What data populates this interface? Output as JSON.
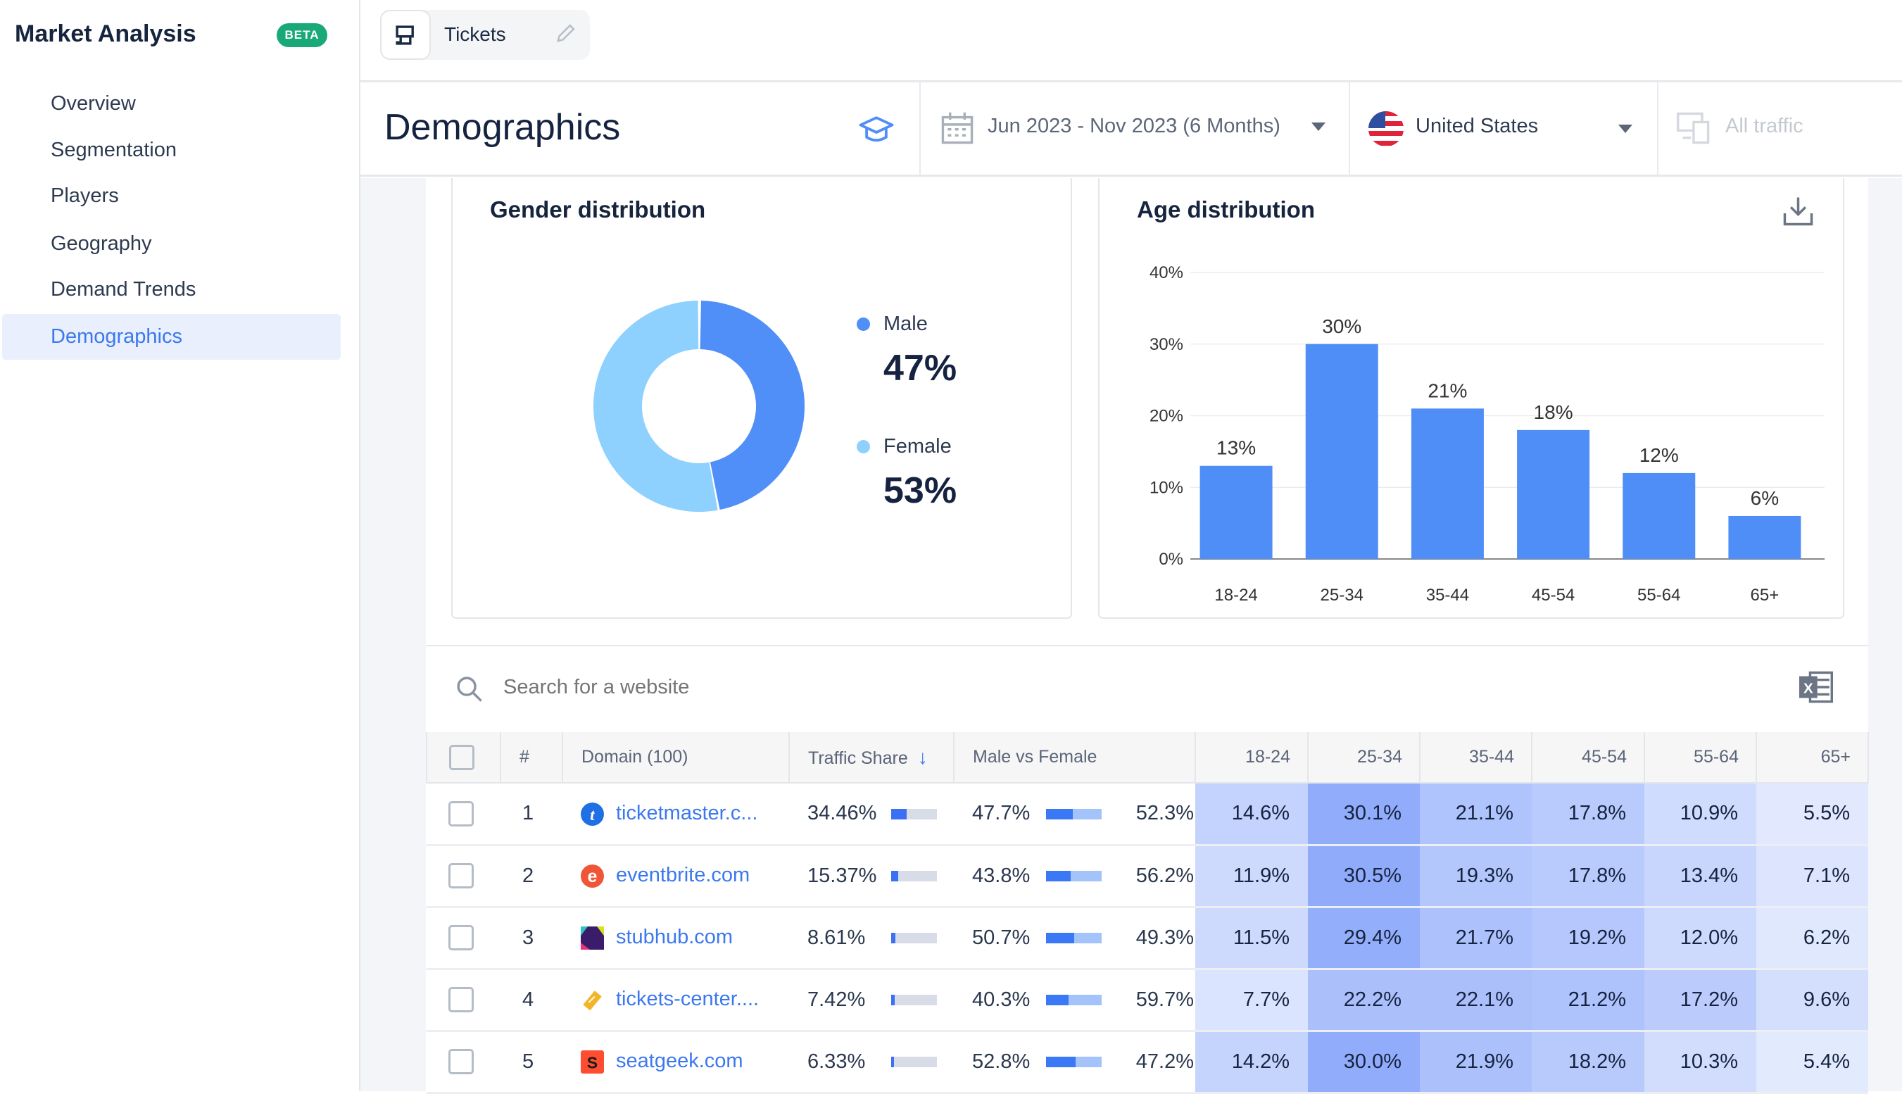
{
  "app": {
    "title": "Market Analysis",
    "badge": "BETA"
  },
  "sidebar": {
    "items": [
      {
        "label": "Overview",
        "active": false
      },
      {
        "label": "Segmentation",
        "active": false
      },
      {
        "label": "Players",
        "active": false
      },
      {
        "label": "Geography",
        "active": false
      },
      {
        "label": "Demand Trends",
        "active": false
      },
      {
        "label": "Demographics",
        "active": true
      }
    ]
  },
  "tab": {
    "label": "Tickets",
    "icon": "ticket-machine-icon",
    "edit_icon": "pencil-icon"
  },
  "header": {
    "title": "Demographics",
    "learn_icon": "graduation-cap-icon",
    "date_range": "Jun 2023 - Nov 2023 (6 Months)",
    "country": "United States",
    "traffic": "All traffic"
  },
  "gender": {
    "title": "Gender distribution",
    "male_label": "Male",
    "male_value": "47%",
    "female_label": "Female",
    "female_value": "53%",
    "colors": {
      "male": "#508ef8",
      "female": "#8ed0fe"
    }
  },
  "chart_data": {
    "type": "bar",
    "title": "Age distribution",
    "categories": [
      "18-24",
      "25-34",
      "35-44",
      "45-54",
      "55-64",
      "65+"
    ],
    "values": [
      13,
      30,
      21,
      18,
      12,
      6
    ],
    "data_labels": [
      "13%",
      "30%",
      "21%",
      "18%",
      "12%",
      "6%"
    ],
    "yticks": [
      "0%",
      "10%",
      "20%",
      "30%",
      "40%"
    ],
    "ylim": [
      0,
      40
    ],
    "grid": true,
    "color": "#4f8ef7"
  },
  "table": {
    "search_placeholder": "Search for a website",
    "columns": [
      "#",
      "Domain (100)",
      "Traffic Share",
      "Male vs Female",
      "18-24",
      "25-34",
      "35-44",
      "45-54",
      "55-64",
      "65+"
    ],
    "rows": [
      {
        "rank": "1",
        "domain": "ticketmaster.c...",
        "icon": "ticketmaster-icon",
        "share": "34.46%",
        "share_pct": 34.46,
        "male": "47.7%",
        "female": "52.3%",
        "male_pct": 47.7,
        "ages": [
          "14.6%",
          "30.1%",
          "21.1%",
          "17.8%",
          "10.9%",
          "5.5%"
        ]
      },
      {
        "rank": "2",
        "domain": "eventbrite.com",
        "icon": "eventbrite-icon",
        "share": "15.37%",
        "share_pct": 15.37,
        "male": "43.8%",
        "female": "56.2%",
        "male_pct": 43.8,
        "ages": [
          "11.9%",
          "30.5%",
          "19.3%",
          "17.8%",
          "13.4%",
          "7.1%"
        ]
      },
      {
        "rank": "3",
        "domain": "stubhub.com",
        "icon": "stubhub-icon",
        "share": "8.61%",
        "share_pct": 8.61,
        "male": "50.7%",
        "female": "49.3%",
        "male_pct": 50.7,
        "ages": [
          "11.5%",
          "29.4%",
          "21.7%",
          "19.2%",
          "12.0%",
          "6.2%"
        ]
      },
      {
        "rank": "4",
        "domain": "tickets-center....",
        "icon": "tickets-center-icon",
        "share": "7.42%",
        "share_pct": 7.42,
        "male": "40.3%",
        "female": "59.7%",
        "male_pct": 40.3,
        "ages": [
          "7.7%",
          "22.2%",
          "22.1%",
          "21.2%",
          "17.2%",
          "9.6%"
        ]
      },
      {
        "rank": "5",
        "domain": "seatgeek.com",
        "icon": "seatgeek-icon",
        "share": "6.33%",
        "share_pct": 6.33,
        "male": "52.8%",
        "female": "47.2%",
        "male_pct": 52.8,
        "ages": [
          "14.2%",
          "30.0%",
          "21.9%",
          "18.2%",
          "10.3%",
          "5.4%"
        ]
      }
    ]
  }
}
